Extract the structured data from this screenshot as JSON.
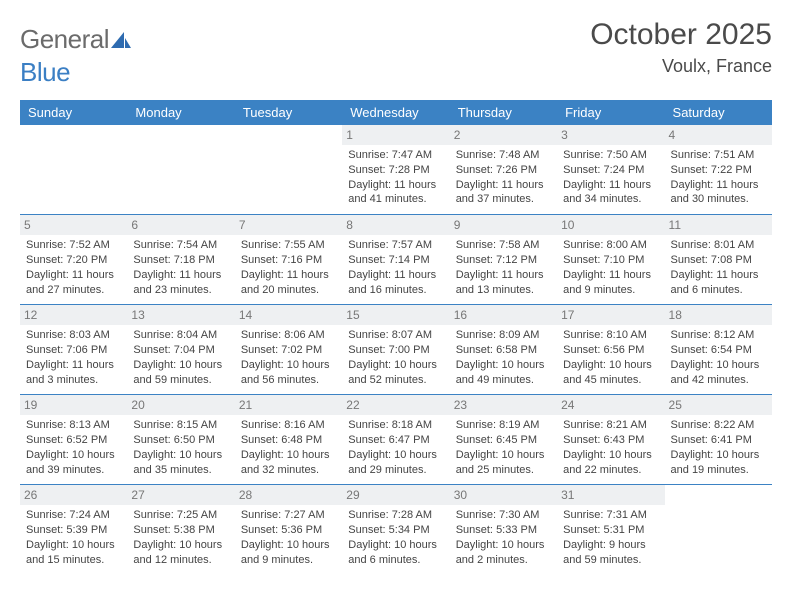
{
  "logo": {
    "text_general": "General",
    "text_blue": "Blue"
  },
  "header": {
    "month_title": "October 2025",
    "location": "Voulx, France"
  },
  "colors": {
    "header_bg": "#3b82c4",
    "header_text": "#ffffff",
    "daynum_bg": "#eef0f2",
    "daynum_text": "#777777",
    "border": "#3b82c4",
    "body_text": "#444444",
    "logo_gray": "#6b6b6b",
    "logo_blue": "#3b7fc4"
  },
  "weekdays": [
    "Sunday",
    "Monday",
    "Tuesday",
    "Wednesday",
    "Thursday",
    "Friday",
    "Saturday"
  ],
  "weeks": [
    [
      null,
      null,
      null,
      {
        "day": "1",
        "sunrise": "7:47 AM",
        "sunset": "7:28 PM",
        "daylight": "11 hours and 41 minutes."
      },
      {
        "day": "2",
        "sunrise": "7:48 AM",
        "sunset": "7:26 PM",
        "daylight": "11 hours and 37 minutes."
      },
      {
        "day": "3",
        "sunrise": "7:50 AM",
        "sunset": "7:24 PM",
        "daylight": "11 hours and 34 minutes."
      },
      {
        "day": "4",
        "sunrise": "7:51 AM",
        "sunset": "7:22 PM",
        "daylight": "11 hours and 30 minutes."
      }
    ],
    [
      {
        "day": "5",
        "sunrise": "7:52 AM",
        "sunset": "7:20 PM",
        "daylight": "11 hours and 27 minutes."
      },
      {
        "day": "6",
        "sunrise": "7:54 AM",
        "sunset": "7:18 PM",
        "daylight": "11 hours and 23 minutes."
      },
      {
        "day": "7",
        "sunrise": "7:55 AM",
        "sunset": "7:16 PM",
        "daylight": "11 hours and 20 minutes."
      },
      {
        "day": "8",
        "sunrise": "7:57 AM",
        "sunset": "7:14 PM",
        "daylight": "11 hours and 16 minutes."
      },
      {
        "day": "9",
        "sunrise": "7:58 AM",
        "sunset": "7:12 PM",
        "daylight": "11 hours and 13 minutes."
      },
      {
        "day": "10",
        "sunrise": "8:00 AM",
        "sunset": "7:10 PM",
        "daylight": "11 hours and 9 minutes."
      },
      {
        "day": "11",
        "sunrise": "8:01 AM",
        "sunset": "7:08 PM",
        "daylight": "11 hours and 6 minutes."
      }
    ],
    [
      {
        "day": "12",
        "sunrise": "8:03 AM",
        "sunset": "7:06 PM",
        "daylight": "11 hours and 3 minutes."
      },
      {
        "day": "13",
        "sunrise": "8:04 AM",
        "sunset": "7:04 PM",
        "daylight": "10 hours and 59 minutes."
      },
      {
        "day": "14",
        "sunrise": "8:06 AM",
        "sunset": "7:02 PM",
        "daylight": "10 hours and 56 minutes."
      },
      {
        "day": "15",
        "sunrise": "8:07 AM",
        "sunset": "7:00 PM",
        "daylight": "10 hours and 52 minutes."
      },
      {
        "day": "16",
        "sunrise": "8:09 AM",
        "sunset": "6:58 PM",
        "daylight": "10 hours and 49 minutes."
      },
      {
        "day": "17",
        "sunrise": "8:10 AM",
        "sunset": "6:56 PM",
        "daylight": "10 hours and 45 minutes."
      },
      {
        "day": "18",
        "sunrise": "8:12 AM",
        "sunset": "6:54 PM",
        "daylight": "10 hours and 42 minutes."
      }
    ],
    [
      {
        "day": "19",
        "sunrise": "8:13 AM",
        "sunset": "6:52 PM",
        "daylight": "10 hours and 39 minutes."
      },
      {
        "day": "20",
        "sunrise": "8:15 AM",
        "sunset": "6:50 PM",
        "daylight": "10 hours and 35 minutes."
      },
      {
        "day": "21",
        "sunrise": "8:16 AM",
        "sunset": "6:48 PM",
        "daylight": "10 hours and 32 minutes."
      },
      {
        "day": "22",
        "sunrise": "8:18 AM",
        "sunset": "6:47 PM",
        "daylight": "10 hours and 29 minutes."
      },
      {
        "day": "23",
        "sunrise": "8:19 AM",
        "sunset": "6:45 PM",
        "daylight": "10 hours and 25 minutes."
      },
      {
        "day": "24",
        "sunrise": "8:21 AM",
        "sunset": "6:43 PM",
        "daylight": "10 hours and 22 minutes."
      },
      {
        "day": "25",
        "sunrise": "8:22 AM",
        "sunset": "6:41 PM",
        "daylight": "10 hours and 19 minutes."
      }
    ],
    [
      {
        "day": "26",
        "sunrise": "7:24 AM",
        "sunset": "5:39 PM",
        "daylight": "10 hours and 15 minutes."
      },
      {
        "day": "27",
        "sunrise": "7:25 AM",
        "sunset": "5:38 PM",
        "daylight": "10 hours and 12 minutes."
      },
      {
        "day": "28",
        "sunrise": "7:27 AM",
        "sunset": "5:36 PM",
        "daylight": "10 hours and 9 minutes."
      },
      {
        "day": "29",
        "sunrise": "7:28 AM",
        "sunset": "5:34 PM",
        "daylight": "10 hours and 6 minutes."
      },
      {
        "day": "30",
        "sunrise": "7:30 AM",
        "sunset": "5:33 PM",
        "daylight": "10 hours and 2 minutes."
      },
      {
        "day": "31",
        "sunrise": "7:31 AM",
        "sunset": "5:31 PM",
        "daylight": "9 hours and 59 minutes."
      },
      null
    ]
  ],
  "labels": {
    "sunrise": "Sunrise:",
    "sunset": "Sunset:",
    "daylight": "Daylight:"
  }
}
